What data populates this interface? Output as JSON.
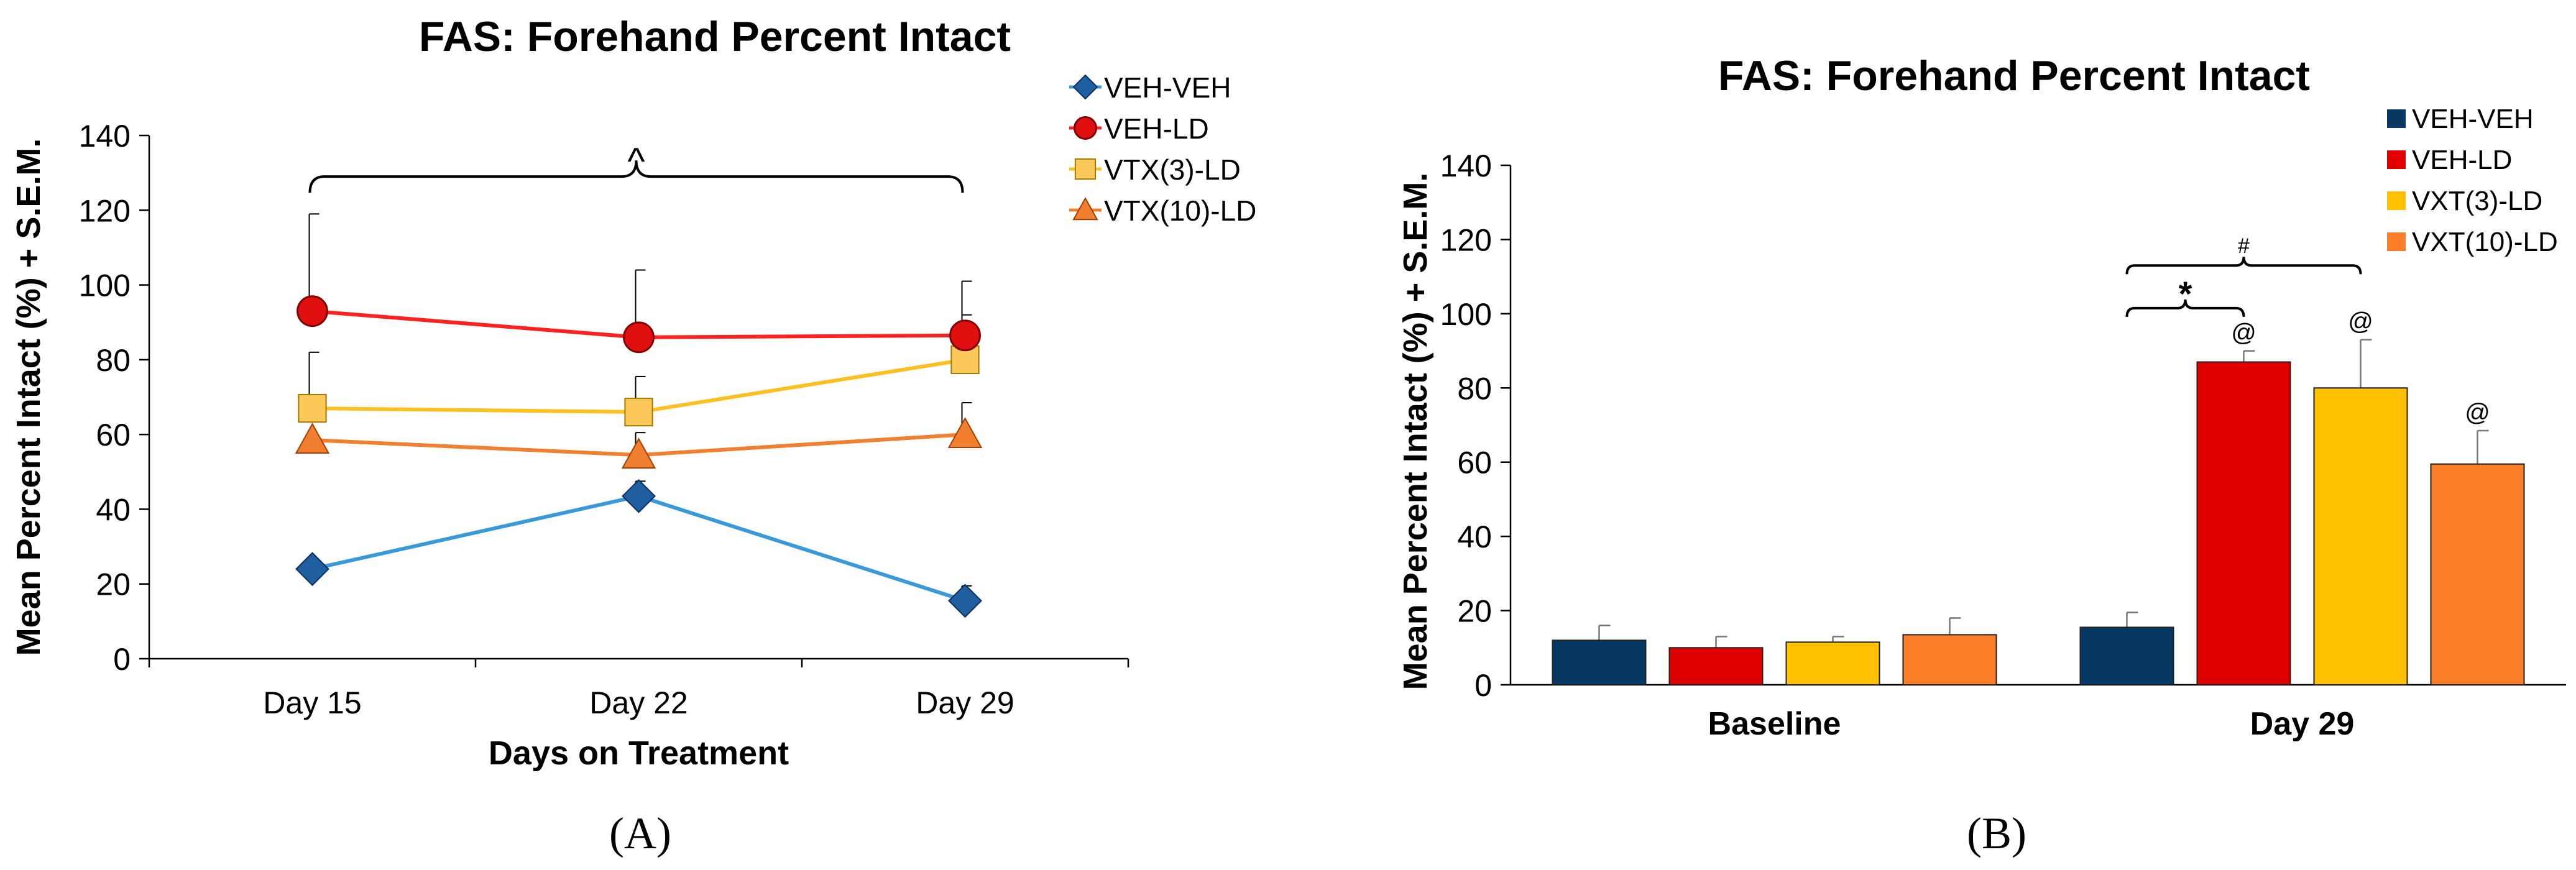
{
  "chart_data": [
    {
      "panel_label": "(A)",
      "type": "line",
      "title": "FAS: Forehand Percent Intact",
      "xlabel": "Days on Treatment",
      "ylabel": "Mean Percent Intact (%) + S.E.M.",
      "categories": [
        "Day 15",
        "Day 22",
        "Day 29"
      ],
      "ylim": [
        0,
        140
      ],
      "yticks": [
        0,
        20,
        40,
        60,
        80,
        100,
        120,
        140
      ],
      "legend_position": "top-right",
      "series": [
        {
          "name": "VEH-VEH",
          "values": [
            24,
            43.5,
            15.5
          ],
          "sem": [
            0,
            4,
            4
          ],
          "marker": "diamond",
          "color": "#1f5f9f",
          "line_color": "#3a9ad9"
        },
        {
          "name": "VEH-LD",
          "values": [
            93,
            86,
            86.5
          ],
          "sem": [
            26,
            18,
            14.5
          ],
          "marker": "circle",
          "color": "#e01010",
          "line_color": "#ff2020"
        },
        {
          "name": "VTX(3)-LD",
          "values": [
            67,
            66,
            80
          ],
          "sem": [
            15,
            9.5,
            12
          ],
          "marker": "square",
          "color": "#fcc85a",
          "line_color": "#fcc020"
        },
        {
          "name": "VTX(10)-LD",
          "values": [
            58.5,
            54.5,
            60
          ],
          "sem": [
            0,
            6,
            8.5
          ],
          "marker": "triangle",
          "color": "#f08030",
          "line_color": "#f08030"
        }
      ],
      "annotations": [
        {
          "text": "^",
          "span": [
            "Day 15",
            "Day 29"
          ]
        }
      ]
    },
    {
      "panel_label": "(B)",
      "type": "bar",
      "title": "FAS: Forehand Percent Intact",
      "xlabel": "",
      "ylabel": "Mean Percent Intact (%) + S.E.M.",
      "categories": [
        "Baseline",
        "Day 29"
      ],
      "ylim": [
        0,
        140
      ],
      "yticks": [
        0,
        20,
        40,
        60,
        80,
        100,
        120,
        140
      ],
      "legend_position": "top-right",
      "series": [
        {
          "name": "VEH-VEH",
          "values": [
            12,
            15.5
          ],
          "sem": [
            4,
            4
          ],
          "color": "#073763",
          "labels": [
            "",
            ""
          ]
        },
        {
          "name": "VEH-LD",
          "values": [
            10,
            87
          ],
          "sem": [
            3,
            3
          ],
          "color": "#e00000",
          "labels": [
            "",
            "@"
          ]
        },
        {
          "name": "VXT(3)-LD",
          "values": [
            11.5,
            80
          ],
          "sem": [
            1.5,
            13
          ],
          "color": "#ffc000",
          "labels": [
            "",
            "@"
          ]
        },
        {
          "name": "VXT(10)-LD",
          "values": [
            13.5,
            59.5
          ],
          "sem": [
            4.5,
            9
          ],
          "color": "#fd7e28",
          "labels": [
            "",
            "@"
          ]
        }
      ],
      "annotations": [
        {
          "text": "#",
          "span": [
            "VEH-VEH",
            "VXT(3)-LD"
          ],
          "category": "Day 29"
        },
        {
          "text": "*",
          "span": [
            "VEH-VEH",
            "VEH-LD"
          ],
          "category": "Day 29"
        }
      ]
    }
  ]
}
